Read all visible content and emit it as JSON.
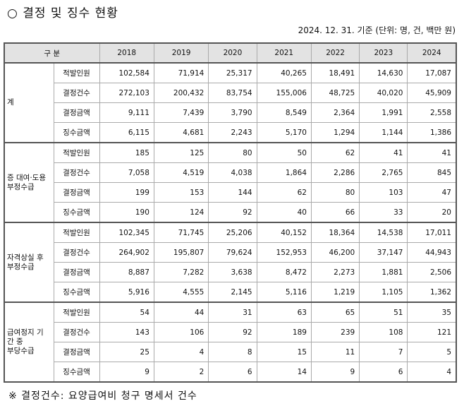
{
  "header": {
    "title": "○ 결정 및 징수 현황",
    "note": "2024. 12. 31. 기준 (단위: 명, 건, 백만 원)"
  },
  "table": {
    "columns": [
      "구 분",
      "2018",
      "2019",
      "2020",
      "2021",
      "2022",
      "2023",
      "2024"
    ],
    "groups": [
      {
        "label": [
          "계"
        ],
        "rows": [
          {
            "label": "적발인원",
            "values": [
              "102,584",
              "71,914",
              "25,317",
              "40,265",
              "18,491",
              "14,630",
              "17,087"
            ]
          },
          {
            "label": "결정건수",
            "values": [
              "272,103",
              "200,432",
              "83,754",
              "155,006",
              "48,725",
              "40,020",
              "45,909"
            ]
          },
          {
            "label": "결정금액",
            "values": [
              "9,111",
              "7,439",
              "3,790",
              "8,549",
              "2,364",
              "1,991",
              "2,558"
            ]
          },
          {
            "label": "징수금액",
            "values": [
              "6,115",
              "4,681",
              "2,243",
              "5,170",
              "1,294",
              "1,144",
              "1,386"
            ]
          }
        ]
      },
      {
        "label": [
          "증 대여·도용",
          "부정수급"
        ],
        "rows": [
          {
            "label": "적발인원",
            "values": [
              "185",
              "125",
              "80",
              "50",
              "62",
              "41",
              "41"
            ]
          },
          {
            "label": "결정건수",
            "values": [
              "7,058",
              "4,519",
              "4,038",
              "1,864",
              "2,286",
              "2,765",
              "845"
            ]
          },
          {
            "label": "결정금액",
            "values": [
              "199",
              "153",
              "144",
              "62",
              "80",
              "103",
              "47"
            ]
          },
          {
            "label": "징수금액",
            "values": [
              "190",
              "124",
              "92",
              "40",
              "66",
              "33",
              "20"
            ]
          }
        ]
      },
      {
        "label": [
          "자격상실 후",
          "부정수급"
        ],
        "rows": [
          {
            "label": "적발인원",
            "values": [
              "102,345",
              "71,745",
              "25,206",
              "40,152",
              "18,364",
              "14,538",
              "17,011"
            ]
          },
          {
            "label": "결정건수",
            "values": [
              "264,902",
              "195,807",
              "79,624",
              "152,953",
              "46,200",
              "37,147",
              "44,943"
            ]
          },
          {
            "label": "결정금액",
            "values": [
              "8,887",
              "7,282",
              "3,638",
              "8,472",
              "2,273",
              "1,881",
              "2,506"
            ]
          },
          {
            "label": "징수금액",
            "values": [
              "5,916",
              "4,555",
              "2,145",
              "5,116",
              "1,219",
              "1,105",
              "1,362"
            ]
          }
        ]
      },
      {
        "label": [
          "급여정지 기간 중",
          "부당수급"
        ],
        "rows": [
          {
            "label": "적발인원",
            "values": [
              "54",
              "44",
              "31",
              "63",
              "65",
              "51",
              "35"
            ]
          },
          {
            "label": "결정건수",
            "values": [
              "143",
              "106",
              "92",
              "189",
              "239",
              "108",
              "121"
            ]
          },
          {
            "label": "결정금액",
            "values": [
              "25",
              "4",
              "8",
              "15",
              "11",
              "7",
              "5"
            ]
          },
          {
            "label": "징수금액",
            "values": [
              "9",
              "2",
              "6",
              "14",
              "9",
              "6",
              "4"
            ]
          }
        ]
      }
    ]
  },
  "footnote": "※ 결정건수: 요양급여비 청구 명세서 건수"
}
